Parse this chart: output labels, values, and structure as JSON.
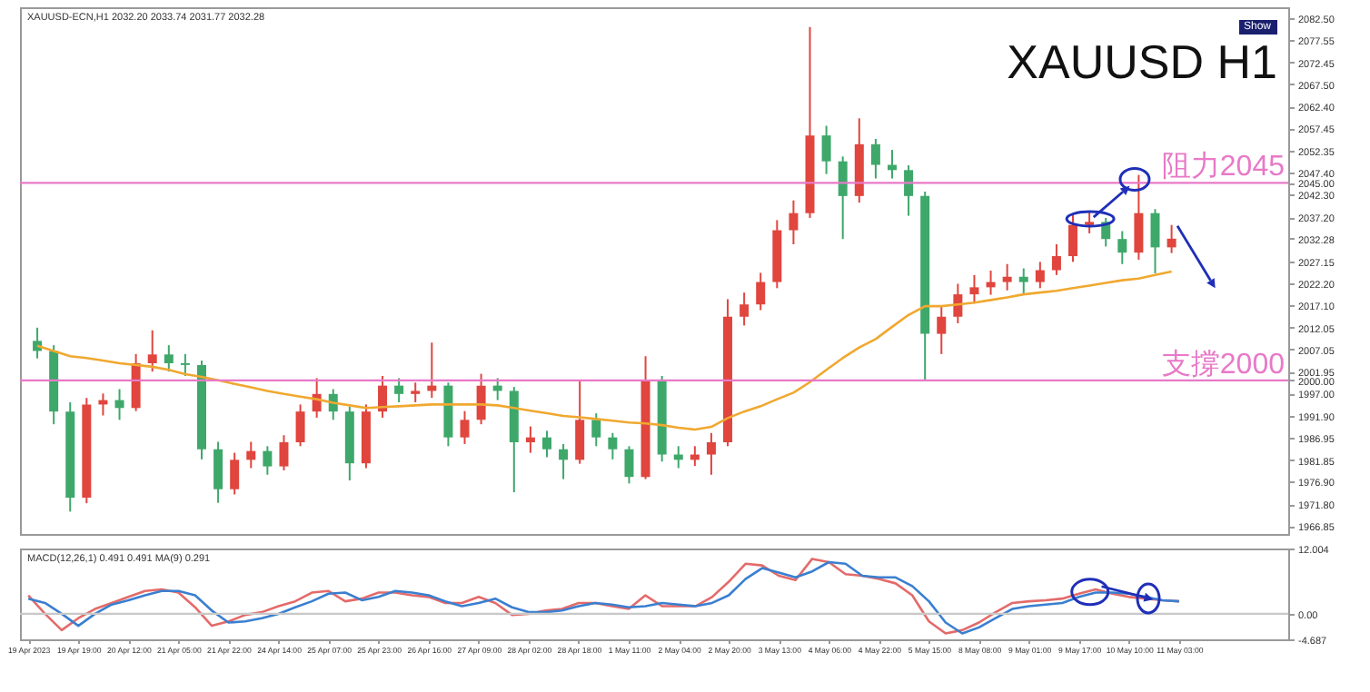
{
  "chart_data": [
    {
      "type": "candlestick",
      "title": "XAUUSD H1",
      "annotations": [
        "XAUUSD-ECN,H1 2032.20 2033.74 2031.77 2032.28",
        "Show"
      ],
      "categories": [
        null,
        null,
        null,
        null,
        null,
        null,
        null,
        null,
        null,
        null,
        null,
        null,
        null,
        null,
        null,
        null,
        null,
        null,
        null,
        null,
        null,
        null,
        null,
        null,
        null,
        null,
        null,
        null,
        null,
        null,
        null,
        null,
        null,
        null,
        null,
        null,
        null,
        null,
        null,
        null,
        null,
        null,
        null,
        null,
        null,
        null,
        null,
        null,
        null,
        null,
        null,
        null,
        null,
        null,
        null,
        null,
        null,
        null,
        null,
        null,
        null,
        null,
        null,
        null,
        null,
        null,
        null,
        null,
        null,
        null
      ],
      "ohlc": [
        [
          2009,
          2012,
          2005,
          2006.7
        ],
        [
          2006.7,
          2008,
          1990,
          1992.9
        ],
        [
          1992.9,
          1995,
          1970.1,
          1973.3
        ],
        [
          1973.3,
          1996,
          1972,
          1994.5
        ],
        [
          1994.5,
          1997,
          1992,
          1995.5
        ],
        [
          1995.5,
          1998,
          1991,
          1993.7
        ],
        [
          1993.7,
          2006,
          1993,
          2003.9
        ],
        [
          2003.9,
          2011.4,
          2002,
          2005.9
        ],
        [
          2005.9,
          2008,
          2002,
          2003.9
        ],
        [
          2003.9,
          2006,
          2001,
          2003.5
        ],
        [
          2003.5,
          2004.5,
          1982,
          1984.3
        ],
        [
          1984.3,
          1986,
          1972.1,
          1975.2
        ],
        [
          1975.2,
          1983.5,
          1974,
          1981.9
        ],
        [
          1981.9,
          1986,
          1980,
          1983.9
        ],
        [
          1983.9,
          1985,
          1978.5,
          1980.4
        ],
        [
          1980.4,
          1987.5,
          1979.5,
          1985.9
        ],
        [
          1985.9,
          1994.5,
          1985,
          1992.9
        ],
        [
          1992.9,
          2000.5,
          1991.5,
          1996.9
        ],
        [
          1996.9,
          1998,
          1991,
          1992.9
        ],
        [
          1992.9,
          1994,
          1977.2,
          1981.1
        ],
        [
          1981.1,
          1994.5,
          1980,
          1992.9
        ],
        [
          1992.9,
          2001,
          1991.5,
          1998.8
        ],
        [
          1998.8,
          2000.5,
          1995,
          1996.9
        ],
        [
          1996.9,
          1999.5,
          1995,
          1997.6
        ],
        [
          1997.6,
          2008.6,
          1996,
          1998.8
        ],
        [
          1998.8,
          1999.5,
          1985,
          1987
        ],
        [
          1987,
          1993,
          1985.5,
          1991
        ],
        [
          1991,
          2001.5,
          1990,
          1998.8
        ],
        [
          1998.8,
          2000.5,
          1995.5,
          1997.6
        ],
        [
          1997.6,
          1998.5,
          1974.5,
          1985.9
        ],
        [
          1985.9,
          1989.5,
          1983.5,
          1987
        ],
        [
          1987,
          1988.5,
          1982.5,
          1984.3
        ],
        [
          1984.3,
          1985.5,
          1977.5,
          1981.9
        ],
        [
          1981.9,
          2000,
          1981,
          1991
        ],
        [
          1991,
          1992.5,
          1985,
          1987
        ],
        [
          1987,
          1988,
          1982,
          1984.3
        ],
        [
          1984.3,
          1985,
          1976.5,
          1978
        ],
        [
          1978,
          2005.5,
          1977.5,
          2000
        ],
        [
          2000,
          2001,
          1981.5,
          1983.1
        ],
        [
          1983.1,
          1985,
          1980,
          1981.9
        ],
        [
          1981.9,
          1985,
          1980.5,
          1983.1
        ],
        [
          1983.1,
          1988,
          1978.5,
          1985.9
        ],
        [
          1985.9,
          2018.5,
          1985,
          2014.5
        ],
        [
          2014.5,
          2020,
          2012.5,
          2017.3
        ],
        [
          2017.3,
          2024.5,
          2016,
          2022.4
        ],
        [
          2022.4,
          2036.5,
          2021,
          2034.2
        ],
        [
          2034.2,
          2041,
          2031,
          2038.1
        ],
        [
          2038.1,
          2080.5,
          2037,
          2055.8
        ],
        [
          2055.8,
          2058,
          2047,
          2049.9
        ],
        [
          2049.9,
          2051,
          2032.2,
          2042
        ],
        [
          2042,
          2059.7,
          2040.5,
          2053.8
        ],
        [
          2053.8,
          2055,
          2046,
          2049.1
        ],
        [
          2049.1,
          2052.5,
          2046,
          2047.9
        ],
        [
          2047.9,
          2049,
          2037.5,
          2042
        ],
        [
          2042,
          2043,
          2000,
          2010.6
        ],
        [
          2010.6,
          2017,
          2006,
          2014.5
        ],
        [
          2014.5,
          2022,
          2013,
          2019.6
        ],
        [
          2019.6,
          2024,
          2017.5,
          2021.2
        ],
        [
          2021.2,
          2025,
          2019.5,
          2022.4
        ],
        [
          2022.4,
          2026.5,
          2020.5,
          2023.6
        ],
        [
          2023.6,
          2025.5,
          2019.5,
          2022.4
        ],
        [
          2022.4,
          2027,
          2021,
          2025.1
        ],
        [
          2025.1,
          2031,
          2024,
          2028.3
        ],
        [
          2028.3,
          2038,
          2027,
          2035.4
        ],
        [
          2035.4,
          2038.5,
          2033.5,
          2036.1
        ],
        [
          2036.1,
          2037,
          2030.5,
          2032.2
        ],
        [
          2032.2,
          2034,
          2026.5,
          2029.1
        ],
        [
          2029.1,
          2046.8,
          2027.5,
          2038.1
        ],
        [
          2038.1,
          2039,
          2024.4,
          2030.3
        ],
        [
          2030.3,
          2035.4,
          2029,
          2032.28
        ]
      ],
      "colors": [
        "#3ea86b",
        "#3ea86b",
        "#3ea86b",
        "#e0453e",
        "#e0453e",
        "#3ea86b",
        "#e0453e",
        "#e0453e",
        "#3ea86b",
        "#3ea86b",
        "#3ea86b",
        "#3ea86b",
        "#e0453e",
        "#e0453e",
        "#3ea86b",
        "#e0453e",
        "#e0453e",
        "#e0453e",
        "#3ea86b",
        "#3ea86b",
        "#e0453e",
        "#e0453e",
        "#3ea86b",
        "#e0453e",
        "#e0453e",
        "#3ea86b",
        "#e0453e",
        "#e0453e",
        "#3ea86b",
        "#3ea86b",
        "#e0453e",
        "#3ea86b",
        "#3ea86b",
        "#e0453e",
        "#3ea86b",
        "#3ea86b",
        "#3ea86b",
        "#e0453e",
        "#3ea86b",
        "#3ea86b",
        "#e0453e",
        "#e0453e",
        "#e0453e",
        "#e0453e",
        "#e0453e",
        "#e0453e",
        "#e0453e",
        "#e0453e",
        "#3ea86b",
        "#3ea86b",
        "#e0453e",
        "#3ea86b",
        "#3ea86b",
        "#3ea86b",
        "#3ea86b",
        "#e0453e",
        "#e0453e",
        "#e0453e",
        "#e0453e",
        "#e0453e",
        "#3ea86b",
        "#e0453e",
        "#e0453e",
        "#e0453e",
        "#e0453e",
        "#3ea86b",
        "#3ea86b",
        "#e0453e",
        "#3ea86b",
        "#e0453e"
      ],
      "series": [
        {
          "type": "line",
          "color": "#f0a830",
          "values": [
            2007.9,
            2006.7,
            2005.5,
            2005.1,
            2004.5,
            2003.9,
            2003.5,
            2003.1,
            2002.4,
            2001.4,
            2000.8,
            2000.0,
            1999.2,
            1998.4,
            1997.6,
            1996.9,
            1996.3,
            1995.7,
            1994.9,
            1994.3,
            1993.7,
            1993.9,
            1994.1,
            1994.3,
            1994.5,
            1994.5,
            1994.5,
            1994.5,
            1994.3,
            1993.7,
            1993.1,
            1992.5,
            1991.9,
            1991.6,
            1991.2,
            1990.8,
            1990.4,
            1990.2,
            1989.8,
            1989.2,
            1988.8,
            1989.4,
            1991.4,
            1992.9,
            1994.1,
            1995.7,
            1997.2,
            1999.6,
            2002.4,
            2005.1,
            2007.5,
            2009.4,
            2012.2,
            2014.9,
            2016.9,
            2016.9,
            2017.3,
            2017.7,
            2018.3,
            2018.9,
            2019.6,
            2020.0,
            2020.4,
            2021.0,
            2021.6,
            2022.2,
            2022.8,
            2023.2,
            2024.0,
            2024.8
          ]
        }
      ],
      "ylim": [
        1965,
        2085
      ],
      "yticks": [
        {
          "value": 2082.5,
          "label": "2082.50"
        },
        {
          "value": 2077.55,
          "label": "2077.55"
        },
        {
          "value": 2072.45,
          "label": "2072.45"
        },
        {
          "value": 2067.5,
          "label": "2067.50"
        },
        {
          "value": 2062.4,
          "label": "2062.40"
        },
        {
          "value": 2057.45,
          "label": "2057.45"
        },
        {
          "value": 2052.35,
          "label": "2052.35"
        },
        {
          "value": 2047.4,
          "label": "2047.40"
        },
        {
          "value": 2045,
          "label": "2045.00"
        },
        {
          "value": 2042.3,
          "label": "2042.30"
        },
        {
          "value": 2037.2,
          "label": "2037.20"
        },
        2032.28,
        {
          "value": 2027.15,
          "label": "2027.15"
        },
        {
          "value": 2022.2,
          "label": "2022.20"
        },
        {
          "value": 2017.1,
          "label": "2017.10"
        },
        {
          "value": 2012.05,
          "label": "2012.05"
        },
        {
          "value": 2007.05,
          "label": "2007.05"
        },
        {
          "value": 2001.95,
          "label": "2001.95"
        },
        {
          "value": 2000,
          "label": "2000.00"
        },
        {
          "value": 1997,
          "label": "1997.00"
        },
        {
          "value": 1991.9,
          "label": "1991.90"
        },
        {
          "value": 1986.95,
          "label": "1986.95"
        },
        {
          "value": 1981.85,
          "label": "1981.85"
        },
        {
          "value": 1976.9,
          "label": "1976.90"
        },
        {
          "value": 1971.8,
          "label": "1971.80"
        },
        {
          "value": 1966.85,
          "label": "1966.85"
        }
      ],
      "ref_lines": [
        {
          "axis": "y",
          "value": 2045,
          "label": "阻力2045",
          "color": "#e879c8"
        },
        {
          "axis": "y",
          "value": 2000,
          "label": "支撐2000",
          "color": "#e879c8"
        }
      ],
      "tick_labels": "y",
      "marker": "none"
    },
    {
      "type": "line",
      "annotations": [
        "MACD(12,26,1) 0.491 0.491 MA(9) 0.291"
      ],
      "categories": [
        "19 Apr 2023",
        null,
        null,
        "19 Apr 19:00",
        null,
        null,
        "20 Apr 12:00",
        null,
        null,
        "21 Apr 05:00",
        null,
        null,
        "21 Apr 22:00",
        null,
        null,
        "24 Apr 14:00",
        null,
        null,
        "25 Apr 07:00",
        null,
        null,
        "25 Apr 23:00",
        null,
        null,
        "26 Apr 16:00",
        null,
        null,
        "27 Apr 09:00",
        null,
        null,
        "28 Apr 02:00",
        null,
        null,
        "28 Apr 18:00",
        null,
        null,
        "1 May 11:00",
        null,
        null,
        "2 May 04:00",
        null,
        null,
        "2 May 20:00",
        null,
        null,
        "3 May 13:00",
        null,
        null,
        "4 May 06:00",
        null,
        null,
        "4 May 22:00",
        null,
        null,
        "5 May 15:00",
        null,
        null,
        "8 May 08:00",
        null,
        null,
        "9 May 01:00",
        null,
        null,
        "9 May 17:00",
        null,
        null,
        "10 May 10:00",
        null,
        null,
        "11 May 03:00"
      ],
      "series": [
        {
          "color": "#e46a6a",
          "values": [
            3.4,
            0.0,
            -3.0,
            -0.8,
            0.9,
            2.0,
            3.1,
            4.2,
            4.5,
            3.9,
            1.2,
            -2.2,
            -1.4,
            -0.2,
            0.3,
            1.4,
            2.3,
            3.9,
            4.2,
            2.3,
            2.8,
            3.9,
            3.9,
            3.4,
            3.1,
            2.0,
            2.0,
            3.1,
            2.0,
            -0.2,
            0.0,
            0.6,
            0.9,
            2.0,
            2.0,
            1.4,
            0.9,
            3.4,
            1.4,
            1.4,
            1.4,
            3.1,
            5.9,
            9.2,
            8.9,
            7.0,
            6.2,
            10.1,
            9.5,
            7.3,
            7.0,
            6.4,
            5.6,
            3.4,
            -1.4,
            -3.6,
            -3.0,
            -1.6,
            0.3,
            2.0,
            2.3,
            2.5,
            2.8,
            3.7,
            4.5,
            3.7,
            3.1,
            2.8,
            2.5,
            2.3
          ]
        },
        {
          "color": "#3a7fd0",
          "values": [
            2.8,
            2.0,
            0.0,
            -2.2,
            0.0,
            1.7,
            2.5,
            3.4,
            4.2,
            4.2,
            3.4,
            0.6,
            -1.6,
            -1.4,
            -0.8,
            0.0,
            1.2,
            2.3,
            3.7,
            3.9,
            2.5,
            3.1,
            4.2,
            3.9,
            3.4,
            2.3,
            1.4,
            2.0,
            2.8,
            1.2,
            0.3,
            0.3,
            0.6,
            1.4,
            2.0,
            1.7,
            1.2,
            1.4,
            2.0,
            1.7,
            1.4,
            2.0,
            3.4,
            6.4,
            8.4,
            7.6,
            6.7,
            7.8,
            9.5,
            9.2,
            7.0,
            6.7,
            6.7,
            5.1,
            2.3,
            -1.6,
            -3.6,
            -2.5,
            -0.8,
            0.9,
            1.4,
            1.7,
            2.0,
            3.1,
            3.9,
            3.9,
            3.7,
            3.1,
            2.5,
            2.3
          ]
        }
      ],
      "ylim": [
        -4.687,
        12.004
      ],
      "yticks": [
        12.004,
        {
          "value": 0,
          "label": "0.00"
        },
        -4.687
      ],
      "ref_lines": [
        {
          "axis": "y",
          "value": 0,
          "color": "#c8c8c8"
        }
      ],
      "marker": "none"
    }
  ]
}
